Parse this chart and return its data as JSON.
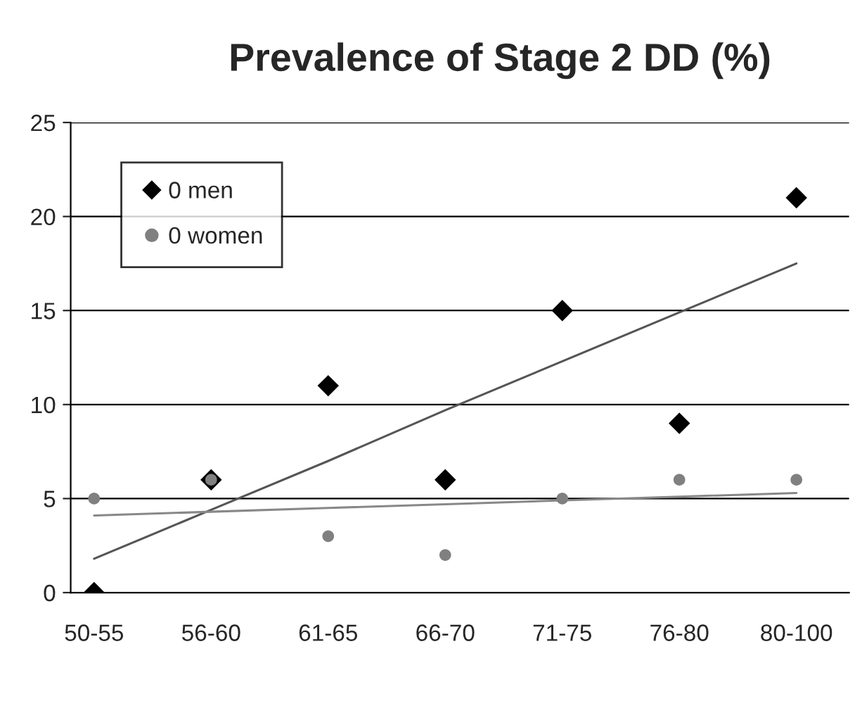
{
  "chart_data": {
    "type": "scatter",
    "title": "Prevalence of Stage 2 DD (%)",
    "categories": [
      "50-55",
      "56-60",
      "61-65",
      "66-70",
      "71-75",
      "76-80",
      "80-100"
    ],
    "series": [
      {
        "name": "0 men",
        "color": "#000000",
        "marker": "diamond",
        "values": [
          0,
          6,
          11,
          6,
          15,
          9,
          21
        ]
      },
      {
        "name": "0 women",
        "color": "#808080",
        "marker": "circle",
        "values": [
          5,
          6,
          3,
          2,
          5,
          6,
          6
        ]
      },
      {
        "type": "line",
        "color": "#555555",
        "values": [
          1.8,
          4.4,
          7.0,
          9.7,
          12.3,
          14.9,
          17.5
        ]
      },
      {
        "type": "line",
        "color": "#888888",
        "values": [
          4.1,
          4.3,
          4.5,
          4.7,
          4.9,
          5.1,
          5.3
        ]
      }
    ],
    "ylim": [
      0,
      25
    ],
    "yticks": [
      0,
      5,
      10,
      15,
      20,
      25
    ],
    "grid": "y",
    "legend": "top left"
  }
}
